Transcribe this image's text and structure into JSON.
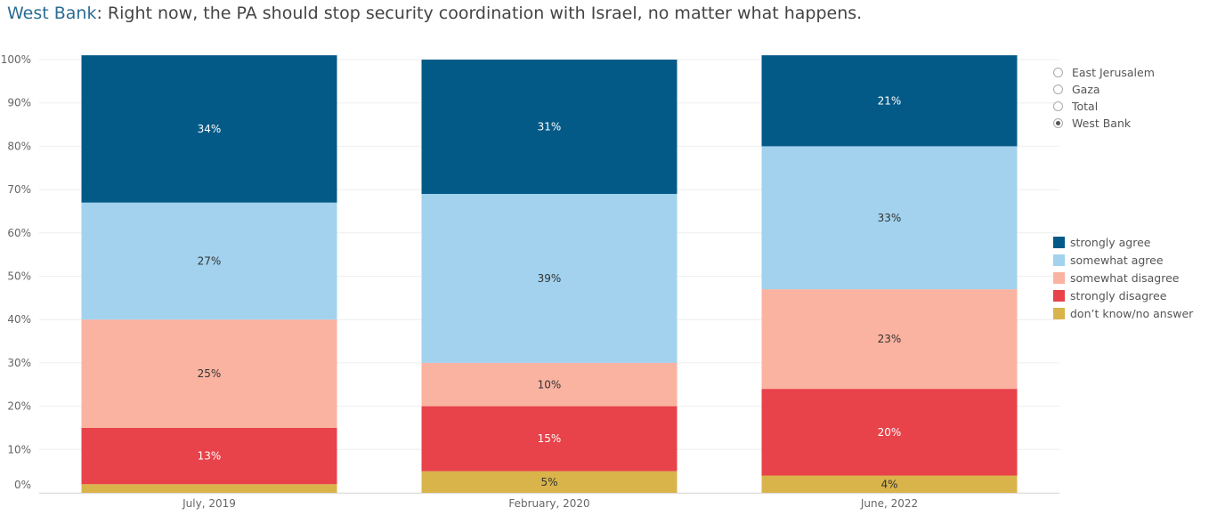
{
  "title": {
    "region": "West Bank",
    "text": ": Right now, the PA should stop security coordination with Israel, no matter what happens."
  },
  "filter": {
    "options": [
      {
        "label": "East Jerusalem",
        "selected": false
      },
      {
        "label": "Gaza",
        "selected": false
      },
      {
        "label": "Total",
        "selected": false
      },
      {
        "label": "West Bank",
        "selected": true
      }
    ]
  },
  "chart_data": {
    "type": "bar",
    "stacked": true,
    "categories": [
      "July, 2019",
      "February, 2020",
      "June, 2022"
    ],
    "series": [
      {
        "name": "don't know/no answer",
        "color": "#d9b44a",
        "label_color": "#333333",
        "values": [
          2,
          5,
          4
        ],
        "labels": [
          "",
          "5%",
          "4%"
        ]
      },
      {
        "name": "strongly disagree",
        "color": "#e8424a",
        "label_color": "#ffffff",
        "values": [
          13,
          15,
          20
        ],
        "labels": [
          "13%",
          "15%",
          "20%"
        ]
      },
      {
        "name": "somewhat disagree",
        "color": "#fab3a0",
        "label_color": "#333333",
        "values": [
          25,
          10,
          23
        ],
        "labels": [
          "25%",
          "10%",
          "23%"
        ]
      },
      {
        "name": "somewhat agree",
        "color": "#a2d2ee",
        "label_color": "#333333",
        "values": [
          27,
          39,
          33
        ],
        "labels": [
          "27%",
          "39%",
          "33%"
        ]
      },
      {
        "name": "strongly agree",
        "color": "#045a87",
        "label_color": "#ffffff",
        "values": [
          34,
          31,
          21
        ],
        "labels": [
          "34%",
          "31%",
          "21%"
        ]
      }
    ],
    "y_ticks": [
      "0%",
      "10%",
      "20%",
      "30%",
      "40%",
      "50%",
      "60%",
      "70%",
      "80%",
      "90%",
      "100%"
    ],
    "ylim": [
      0,
      100
    ],
    "grid": true,
    "legend": {
      "placement": "right",
      "items": [
        {
          "label": "strongly agree",
          "color": "#045a87"
        },
        {
          "label": "somewhat agree",
          "color": "#a2d2ee"
        },
        {
          "label": "somewhat disagree",
          "color": "#fab3a0"
        },
        {
          "label": "strongly disagree",
          "color": "#e8424a"
        },
        {
          "label": "don’t know/no answer",
          "color": "#d9b44a"
        }
      ]
    }
  }
}
